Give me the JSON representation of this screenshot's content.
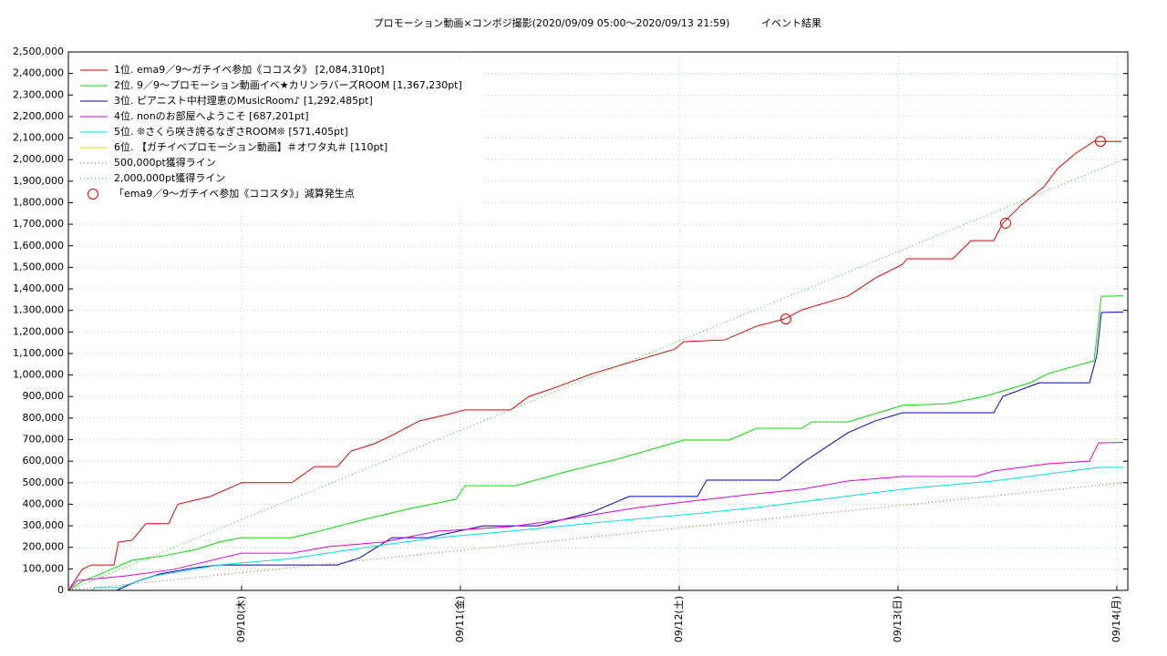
{
  "chart_data": {
    "type": "line",
    "title": "プロモーション動画×コンボジ撮影(2020/09/09 05:00〜2020/09/13 21:59)",
    "subtitle": "イベント結果",
    "xlim": [
      0,
      116.2
    ],
    "xticks": [
      {
        "value": 19,
        "label": "09/10(木)"
      },
      {
        "value": 43,
        "label": "09/11(金)"
      },
      {
        "value": 67,
        "label": "09/12(土)"
      },
      {
        "value": 91,
        "label": "09/13(日)"
      },
      {
        "value": 115,
        "label": "09/14(月)"
      }
    ],
    "ylim": [
      0,
      2500000
    ],
    "yticks": [
      {
        "value": 0,
        "label": "0"
      },
      {
        "value": 100000,
        "label": "100,000"
      },
      {
        "value": 200000,
        "label": "200,000"
      },
      {
        "value": 300000,
        "label": "300,000"
      },
      {
        "value": 400000,
        "label": "400,000"
      },
      {
        "value": 500000,
        "label": "500,000"
      },
      {
        "value": 600000,
        "label": "600,000"
      },
      {
        "value": 700000,
        "label": "700,000"
      },
      {
        "value": 800000,
        "label": "800,000"
      },
      {
        "value": 900000,
        "label": "900,000"
      },
      {
        "value": 1000000,
        "label": "1,000,000"
      },
      {
        "value": 1100000,
        "label": "1,100,000"
      },
      {
        "value": 1200000,
        "label": "1,200,000"
      },
      {
        "value": 1300000,
        "label": "1,300,000"
      },
      {
        "value": 1400000,
        "label": "1,400,000"
      },
      {
        "value": 1500000,
        "label": "1,500,000"
      },
      {
        "value": 1600000,
        "label": "1,600,000"
      },
      {
        "value": 1700000,
        "label": "1,700,000"
      },
      {
        "value": 1800000,
        "label": "1,800,000"
      },
      {
        "value": 1900000,
        "label": "1,900,000"
      },
      {
        "value": 2000000,
        "label": "2,000,000"
      },
      {
        "value": 2100000,
        "label": "2,100,000"
      },
      {
        "value": 2200000,
        "label": "2,200,000"
      },
      {
        "value": 2300000,
        "label": "2,300,000"
      },
      {
        "value": 2400000,
        "label": "2,400,000"
      },
      {
        "value": 2500000,
        "label": "2,500,000"
      }
    ],
    "grid": true,
    "legend": "upper left",
    "series": [
      {
        "name": "1位. ema9／9〜ガチイベ参加《ココスタ》 [2,084,310pt]",
        "color": "#e00000",
        "style": "line",
        "x": [
          0,
          1.5,
          2.5,
          5,
          5.5,
          7,
          8.5,
          11,
          12,
          15.5,
          19,
          24.5,
          27,
          29.5,
          31,
          33.5,
          35.5,
          38.5,
          41.5,
          43.5,
          48.5,
          50.5,
          53.5,
          57.5,
          62.5,
          66.5,
          67.5,
          72,
          75.5,
          78.5,
          80.5,
          85.5,
          88.5,
          91.5,
          92,
          97,
          99,
          101.5,
          102.5,
          104.5,
          107,
          108.5,
          110.5,
          112.5,
          115.5
        ],
        "values": [
          0,
          97000,
          118000,
          118000,
          224000,
          233000,
          310000,
          310000,
          400000,
          435000,
          500000,
          500000,
          575000,
          575000,
          647000,
          680000,
          720000,
          787000,
          816000,
          838000,
          838000,
          900000,
          943000,
          1007000,
          1070000,
          1120000,
          1155000,
          1163000,
          1227000,
          1260000,
          1303000,
          1366000,
          1450000,
          1514000,
          1540000,
          1540000,
          1624000,
          1624000,
          1705000,
          1789000,
          1874000,
          1958000,
          2030000,
          2085000,
          2084310
        ]
      },
      {
        "name": "2位. 9／9〜プロモーション動画イベ★カリンラバーズROOM [1,367,230pt]",
        "color": "#00e000",
        "style": "line",
        "x": [
          0,
          1.5,
          3.5,
          7,
          10.5,
          14,
          16.5,
          19,
          24.5,
          27.5,
          32.5,
          37.5,
          42.5,
          43.5,
          49,
          54.5,
          60.5,
          67.5,
          72.5,
          75.5,
          80.5,
          81.5,
          85.5,
          91.5,
          96.5,
          100.5,
          105.5,
          107.5,
          112.5,
          113.3,
          115.7
        ],
        "values": [
          0,
          42000,
          76000,
          140000,
          161000,
          190000,
          224000,
          245000,
          245000,
          275000,
          330000,
          380000,
          423000,
          486000,
          486000,
          550000,
          613000,
          698000,
          698000,
          753000,
          753000,
          782000,
          782000,
          859000,
          867000,
          901000,
          964000,
          1007000,
          1066000,
          1366000,
          1367230
        ]
      },
      {
        "name": "3位. ピアニスト中村理恵のMusicRoom♪ [1,292,485pt]",
        "color": "#0000c8",
        "style": "line",
        "x": [
          5.3,
          7.5,
          10,
          14,
          16.5,
          29.5,
          32,
          35.5,
          39.5,
          45.5,
          51.5,
          57.5,
          61.5,
          69,
          70,
          78,
          80.5,
          85.5,
          88.5,
          91.5,
          101.5,
          102.5,
          106.5,
          112,
          112.8,
          113.3,
          115.7
        ],
        "values": [
          0,
          42000,
          76000,
          106000,
          118000,
          118000,
          152000,
          245000,
          245000,
          300000,
          300000,
          364000,
          436000,
          436000,
          512000,
          512000,
          592000,
          732000,
          787000,
          825000,
          825000,
          901000,
          964000,
          964000,
          1091000,
          1290000,
          1292485
        ]
      },
      {
        "name": "4位. nonのお部屋へようこそ [687,201pt]",
        "color": "#e000e0",
        "style": "line",
        "x": [
          0,
          1,
          6.5,
          11.5,
          19,
          24.5,
          28.5,
          34.5,
          40.5,
          48.5,
          54.5,
          62.5,
          68.5,
          74.5,
          80.5,
          85.5,
          91.5,
          99.5,
          101.5,
          107.5,
          112,
          113,
          115.7
        ],
        "values": [
          0,
          46000,
          68000,
          97000,
          173000,
          173000,
          203000,
          224000,
          275000,
          296000,
          330000,
          385000,
          415000,
          444000,
          470000,
          508000,
          529000,
          529000,
          554000,
          588000,
          600000,
          685000,
          687201
        ]
      },
      {
        "name": "5位. ❊さくら咲き誇るなぎさROOM❊ [571,405pt]",
        "color": "#00e0e0",
        "style": "line",
        "x": [
          2.5,
          3,
          5.5,
          9.5,
          16.5,
          24.5,
          34.5,
          40.5,
          48.5,
          58.5,
          67.5,
          75.5,
          83.5,
          91.5,
          101.5,
          107.5,
          113,
          115.7
        ],
        "values": [
          0,
          13000,
          13000,
          68000,
          118000,
          148000,
          211000,
          245000,
          275000,
          317000,
          351000,
          385000,
          427000,
          470000,
          508000,
          541000,
          571000,
          571405
        ]
      },
      {
        "name": "6位. 【ガチイベプロモーション動画】＃オワタ丸＃ [110pt]",
        "color": "#e0e000",
        "style": "line",
        "x": [
          0,
          115.7
        ],
        "values": [
          0,
          110
        ]
      },
      {
        "name": "500,000pt獲得ライン",
        "color": "#a05030",
        "style": "dotted",
        "x": [
          0,
          115.7
        ],
        "values": [
          0,
          500000
        ]
      },
      {
        "name": "2,000,000pt獲得ライン",
        "color": "#00c000",
        "style": "dotted",
        "x": [
          0,
          115.7
        ],
        "values": [
          0,
          2000000
        ]
      },
      {
        "name": "「ema9／9〜ガチイベ参加《ココスタ》」減算発生点",
        "color": "#e00000",
        "style": "marker",
        "x": [
          78.7,
          102.8,
          113.2
        ],
        "values": [
          1260000,
          1705000,
          2085000
        ]
      }
    ]
  }
}
